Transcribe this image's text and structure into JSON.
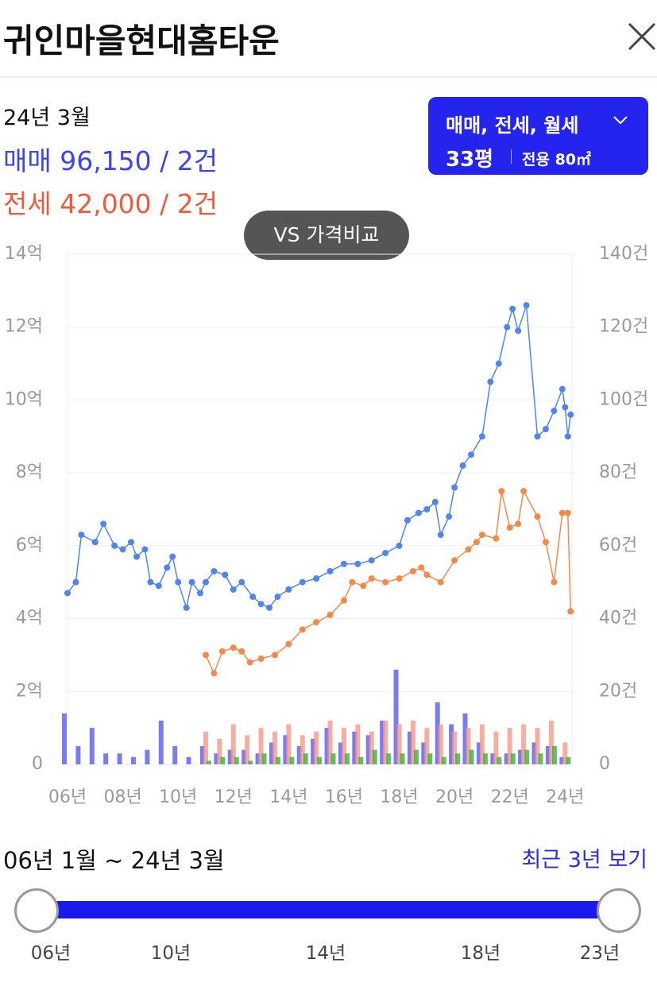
{
  "header": {
    "title": "귀인마을현대홈타운"
  },
  "summary": {
    "date": "24년 3월",
    "sale": "매매 96,150 / 2건",
    "jeonse": "전세 42,000 / 2건"
  },
  "filter": {
    "types": "매매, 전세, 월세",
    "size": "33평",
    "area": "전용 80㎡"
  },
  "compare_button": "VS 가격비교",
  "chart_data": {
    "type": "line",
    "grid": true,
    "xlim": [
      6,
      24.25
    ],
    "xticks": [
      {
        "value": 6,
        "label": "06년"
      },
      {
        "value": 8,
        "label": "08년"
      },
      {
        "value": 10,
        "label": "10년"
      },
      {
        "value": 12,
        "label": "12년"
      },
      {
        "value": 14,
        "label": "14년"
      },
      {
        "value": 16,
        "label": "16년"
      },
      {
        "value": 18,
        "label": "18년"
      },
      {
        "value": 20,
        "label": "20년"
      },
      {
        "value": 22,
        "label": "22년"
      },
      {
        "value": 24,
        "label": "24년"
      }
    ],
    "ylim": [
      0,
      14
    ],
    "yticks": [
      0,
      {
        "value": 2,
        "label": "2억"
      },
      {
        "value": 4,
        "label": "4억"
      },
      {
        "value": 6,
        "label": "6억"
      },
      {
        "value": 8,
        "label": "8억"
      },
      {
        "value": 10,
        "label": "10억"
      },
      {
        "value": 12,
        "label": "12억"
      },
      {
        "value": 14,
        "label": "14억"
      }
    ],
    "y2lim": [
      0,
      140
    ],
    "y2ticks": [
      0,
      {
        "value": 20,
        "label": "20건"
      },
      {
        "value": 40,
        "label": "40건"
      },
      {
        "value": 60,
        "label": "60건"
      },
      {
        "value": 80,
        "label": "80건"
      },
      {
        "value": 100,
        "label": "100건"
      },
      {
        "value": 120,
        "label": "120건"
      },
      {
        "value": 140,
        "label": "140건"
      }
    ],
    "series": [
      {
        "type": "bar",
        "axis": "y2",
        "color": "#5a5af0",
        "x": [
          6,
          6.5,
          7,
          7.5,
          8,
          8.5,
          9,
          9.5,
          10,
          10.5,
          11,
          11.5,
          12,
          12.5,
          13,
          13.5,
          14,
          14.5,
          15,
          15.5,
          16,
          16.5,
          17,
          17.5,
          18,
          18.5,
          19,
          19.5,
          20,
          20.5,
          21,
          21.5,
          22,
          22.5,
          23,
          23.5,
          24
        ],
        "values": [
          14,
          5,
          10,
          3,
          3,
          2,
          4,
          12,
          5,
          2,
          5,
          3,
          4,
          4,
          3,
          6,
          8,
          5,
          7,
          10,
          6,
          9,
          8,
          12,
          26,
          9,
          6,
          17,
          11,
          14,
          6,
          3,
          3,
          4,
          6,
          5,
          2
        ]
      },
      {
        "type": "bar",
        "axis": "y2",
        "color": "#f59a8a",
        "x": [
          6,
          6.5,
          7,
          7.5,
          8,
          8.5,
          9,
          9.5,
          10,
          10.5,
          11,
          11.5,
          12,
          12.5,
          13,
          13.5,
          14,
          14.5,
          15,
          15.5,
          16,
          16.5,
          17,
          17.5,
          18,
          18.5,
          19,
          19.5,
          20,
          20.5,
          21,
          21.5,
          22,
          22.5,
          23,
          23.5,
          24
        ],
        "values": [
          null,
          null,
          null,
          null,
          null,
          null,
          null,
          null,
          null,
          null,
          9,
          7,
          11,
          8,
          10,
          9,
          11,
          8,
          9,
          12,
          10,
          11,
          9,
          12,
          11,
          12,
          10,
          11,
          9,
          10,
          11,
          9,
          10,
          11,
          10,
          12,
          6
        ]
      },
      {
        "type": "bar",
        "axis": "y2",
        "color": "#3fae3f",
        "x": [
          6,
          6.5,
          7,
          7.5,
          8,
          8.5,
          9,
          9.5,
          10,
          10.5,
          11,
          11.5,
          12,
          12.5,
          13,
          13.5,
          14,
          14.5,
          15,
          15.5,
          16,
          16.5,
          17,
          17.5,
          18,
          18.5,
          19,
          19.5,
          20,
          20.5,
          21,
          21.5,
          22,
          22.5,
          23,
          23.5,
          24
        ],
        "values": [
          null,
          null,
          null,
          null,
          null,
          null,
          null,
          null,
          null,
          null,
          1,
          2,
          2,
          1,
          3,
          2,
          2,
          3,
          2,
          3,
          3,
          2,
          4,
          3,
          3,
          4,
          3,
          2,
          3,
          4,
          3,
          2,
          3,
          4,
          3,
          5,
          2
        ]
      },
      {
        "type": "line",
        "color": "#4f86ee",
        "x": [
          6,
          6.3,
          6.5,
          7,
          7.3,
          7.7,
          8,
          8.3,
          8.5,
          8.8,
          9,
          9.3,
          9.6,
          9.8,
          10,
          10.3,
          10.5,
          10.8,
          11,
          11.3,
          11.7,
          12,
          12.3,
          12.7,
          13,
          13.3,
          13.6,
          14,
          14.5,
          15,
          15.5,
          16,
          16.5,
          17,
          17.5,
          18,
          18.3,
          18.7,
          19,
          19.3,
          19.5,
          19.8,
          20,
          20.3,
          20.6,
          21,
          21.3,
          21.6,
          21.9,
          22.1,
          22.3,
          22.6,
          23,
          23.3,
          23.6,
          23.9,
          24,
          24.1,
          24.2
        ],
        "values": [
          4.7,
          5,
          6.3,
          6.1,
          6.6,
          6,
          5.9,
          6.1,
          5.7,
          5.9,
          5,
          4.9,
          5.4,
          5.7,
          5,
          4.3,
          5,
          4.7,
          5,
          5.3,
          5.2,
          4.8,
          5,
          4.6,
          4.4,
          4.3,
          4.6,
          4.8,
          5,
          5.1,
          5.3,
          5.5,
          5.5,
          5.6,
          5.8,
          6,
          6.7,
          6.9,
          7,
          7.2,
          6.3,
          6.8,
          7.6,
          8.2,
          8.5,
          9,
          10.5,
          11,
          12,
          12.5,
          11.9,
          12.6,
          9,
          9.2,
          9.7,
          10.3,
          9.8,
          9,
          9.6
        ]
      },
      {
        "type": "line",
        "color": "#f5894a",
        "x": [
          11,
          11.3,
          11.6,
          12,
          12.3,
          12.6,
          13,
          13.5,
          14,
          14.5,
          15,
          15.5,
          16,
          16.3,
          16.7,
          17,
          17.5,
          18,
          18.5,
          18.8,
          19,
          19.5,
          20,
          20.5,
          20.8,
          21,
          21.5,
          21.7,
          22,
          22.3,
          22.5,
          23,
          23.3,
          23.6,
          23.9,
          24.1,
          24.2
        ],
        "values": [
          3,
          2.5,
          3.1,
          3.2,
          3.1,
          2.8,
          2.9,
          3,
          3.3,
          3.7,
          3.9,
          4.1,
          4.5,
          5,
          4.9,
          5.1,
          5,
          5.1,
          5.3,
          5.4,
          5.2,
          5,
          5.6,
          5.9,
          6.1,
          6.3,
          6.2,
          7.5,
          6.5,
          6.6,
          7.5,
          6.8,
          6.1,
          5,
          6.9,
          6.9,
          4.2
        ]
      }
    ]
  },
  "period": {
    "range": "06년 1월 ~ 24년 3월",
    "recent": "최근 3년 보기"
  },
  "slider": {
    "labels": [
      "06년",
      "10년",
      "14년",
      "18년",
      "23년"
    ]
  }
}
